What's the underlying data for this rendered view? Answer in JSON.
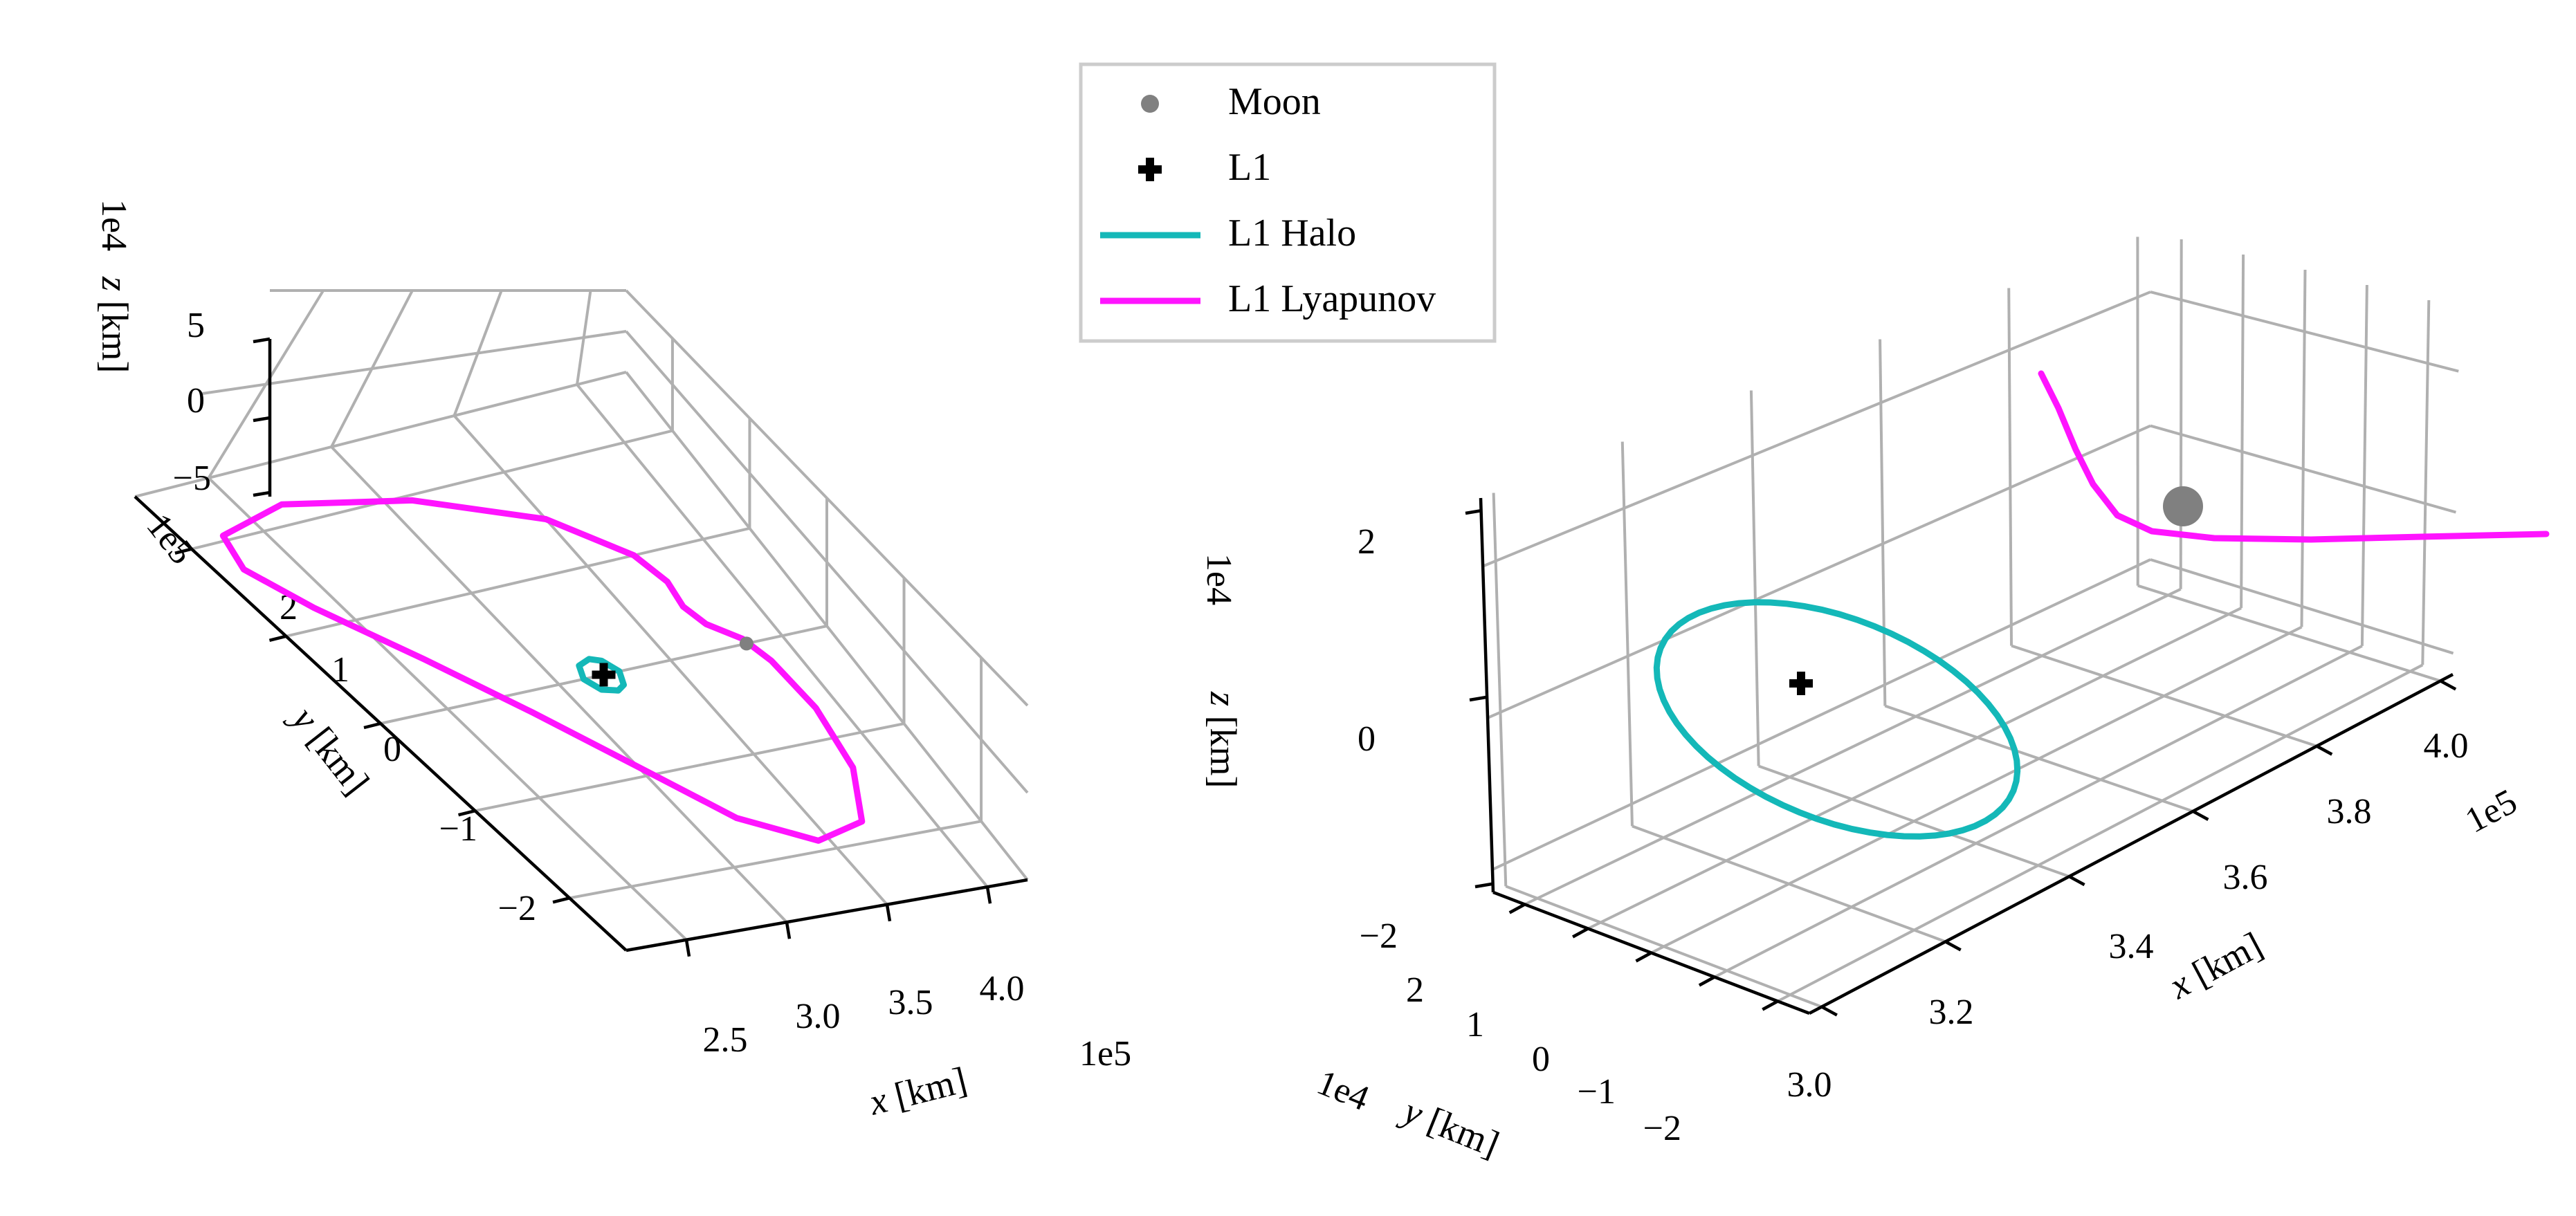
{
  "colors": {
    "moon": "#808080",
    "l1": "#000000",
    "halo": "#14b8b8",
    "lyapunov": "#ff14ff",
    "grid": "#b0b0b0"
  },
  "legend": {
    "placement": "top-center",
    "entries": [
      {
        "label": "Moon",
        "marker": "dot"
      },
      {
        "label": "L1",
        "marker": "plus"
      },
      {
        "label": "L1 Halo",
        "marker": "line"
      },
      {
        "label": "L1 Lyapunov",
        "marker": "line"
      }
    ]
  },
  "chart_data": [
    {
      "type": "line",
      "projection": "3d",
      "grid": true,
      "axes": {
        "x": {
          "label_var": "x",
          "label_unit": " [km]",
          "offset": "1e5",
          "ticks": [
            "2.5",
            "3.0",
            "3.5",
            "4.0"
          ],
          "range": [
            2.2,
            4.2
          ]
        },
        "y": {
          "label_var": "y",
          "label_unit": " [km]",
          "offset": "1e5",
          "ticks": [
            "2",
            "1",
            "0",
            "−1",
            "−2"
          ],
          "range": [
            -2.6,
            2.6
          ]
        },
        "z": {
          "label_var": "z",
          "label_unit": " [km]",
          "offset": "1e4",
          "ticks": [
            "5",
            "0",
            "−5"
          ],
          "range": [
            -5,
            5
          ]
        }
      },
      "series": [
        {
          "name": "L1 Lyapunov",
          "color": "#ff14ff",
          "points": [
            [
              3.84,
              0.05
            ],
            [
              3.75,
              0.25
            ],
            [
              3.72,
              0.45
            ],
            [
              3.74,
              0.7
            ],
            [
              3.7,
              1.0
            ],
            [
              3.5,
              1.5
            ],
            [
              3.1,
              1.95
            ],
            [
              2.65,
              2.2
            ],
            [
              2.35,
              2.05
            ],
            [
              2.3,
              1.7
            ],
            [
              2.4,
              1.2
            ],
            [
              2.6,
              0.5
            ],
            [
              2.8,
              -0.2
            ],
            [
              3.0,
              -0.9
            ],
            [
              3.2,
              -1.55
            ],
            [
              3.45,
              -1.9
            ],
            [
              3.7,
              -1.8
            ],
            [
              3.85,
              -1.3
            ],
            [
              3.9,
              -0.7
            ],
            [
              3.88,
              -0.2
            ],
            [
              3.84,
              0.05
            ]
          ]
        },
        {
          "name": "L1 Halo",
          "color": "#14b8b8",
          "points": [
            [
              3.2,
              0.17
            ],
            [
              3.24,
              0.13
            ],
            [
              3.27,
              0.0
            ],
            [
              3.24,
              -0.13
            ],
            [
              3.2,
              -0.17
            ],
            [
              3.14,
              -0.13
            ],
            [
              3.11,
              0.0
            ],
            [
              3.14,
              0.13
            ],
            [
              3.2,
              0.17
            ]
          ]
        }
      ],
      "markers": [
        {
          "name": "L1",
          "x": 3.2,
          "y": 0.0,
          "z": 0
        },
        {
          "name": "Moon",
          "x": 3.84,
          "y": 0.0,
          "z": 0
        }
      ]
    },
    {
      "type": "line",
      "projection": "3d",
      "grid": true,
      "axes": {
        "x": {
          "label_var": "x",
          "label_unit": " [km]",
          "offset": "1e5",
          "ticks": [
            "3.0",
            "3.2",
            "3.4",
            "3.6",
            "3.8",
            "4.0"
          ],
          "range": [
            3.0,
            4.0
          ]
        },
        "y": {
          "label_var": "y",
          "label_unit": " [km]",
          "offset": "1e4",
          "ticks": [
            "2",
            "1",
            "0",
            "−1",
            "−2"
          ],
          "range": [
            -2.5,
            2.5
          ]
        },
        "z": {
          "label_var": "z",
          "label_unit": " [km]",
          "offset": "1e4",
          "ticks": [
            "2",
            "0",
            "−2"
          ],
          "range": [
            -2.6,
            2.6
          ]
        }
      },
      "series": [
        {
          "name": "L1 Halo",
          "color": "#14b8b8"
        },
        {
          "name": "L1 Lyapunov",
          "color": "#ff14ff"
        }
      ],
      "markers": [
        {
          "name": "L1",
          "x": 3.26,
          "y": 0.0,
          "z": 0
        },
        {
          "name": "Moon",
          "x": 3.84,
          "y": 0.0,
          "z": 0
        }
      ]
    }
  ]
}
